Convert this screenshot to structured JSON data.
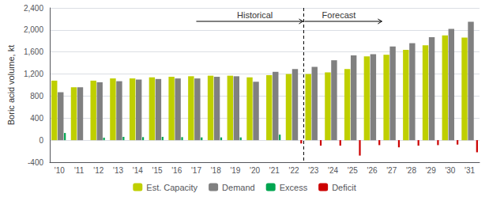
{
  "chart_data": {
    "type": "bar",
    "categories": [
      "'10",
      "'11",
      "'12",
      "'13",
      "'14",
      "'15",
      "'16",
      "'17",
      "'18",
      "'19",
      "'20",
      "'21",
      "'22",
      "'23",
      "'24",
      "'25",
      "'26",
      "'27",
      "'28",
      "'29",
      "'30",
      "'31"
    ],
    "series": [
      {
        "name": "Est. Capacity",
        "color": "#bfcf00",
        "values": [
          1080,
          960,
          1080,
          1120,
          1120,
          1140,
          1150,
          1160,
          1170,
          1170,
          1140,
          1180,
          1200,
          1200,
          1230,
          1290,
          1520,
          1550,
          1640,
          1720,
          1900,
          1860
        ]
      },
      {
        "name": "Demand",
        "color": "#808080",
        "values": [
          870,
          960,
          1050,
          1070,
          1100,
          1110,
          1120,
          1120,
          1150,
          1160,
          1060,
          1240,
          1290,
          1330,
          1450,
          1540,
          1560,
          1700,
          1760,
          1870,
          2020,
          2150
        ]
      },
      {
        "name": "Excess",
        "color": "#00a550",
        "values": [
          130,
          0,
          45,
          60,
          55,
          60,
          55,
          50,
          50,
          50,
          0,
          100,
          0,
          0,
          0,
          0,
          0,
          0,
          0,
          0,
          0,
          0
        ]
      },
      {
        "name": "Deficit",
        "color": "#cc0000",
        "values": [
          0,
          0,
          0,
          0,
          0,
          0,
          0,
          0,
          0,
          0,
          0,
          0,
          -60,
          -100,
          -100,
          -280,
          -90,
          -130,
          -100,
          -90,
          -80,
          -220
        ]
      }
    ],
    "ylabel": "Boric acid volume, kt",
    "ylim": [
      -400,
      2400
    ],
    "yticks": [
      -400,
      0,
      400,
      800,
      {
        "value": 1200,
        "label": "1,200"
      },
      {
        "value": 1600,
        "label": "1,600"
      },
      {
        "value": 2000,
        "label": "2,000"
      },
      {
        "value": 2400,
        "label": "2,400"
      }
    ],
    "grid": true,
    "legend": "bottom",
    "annotations": [
      {
        "text": "Historical",
        "end": "'22"
      },
      {
        "text": "Forecast",
        "start": "'23"
      }
    ]
  }
}
